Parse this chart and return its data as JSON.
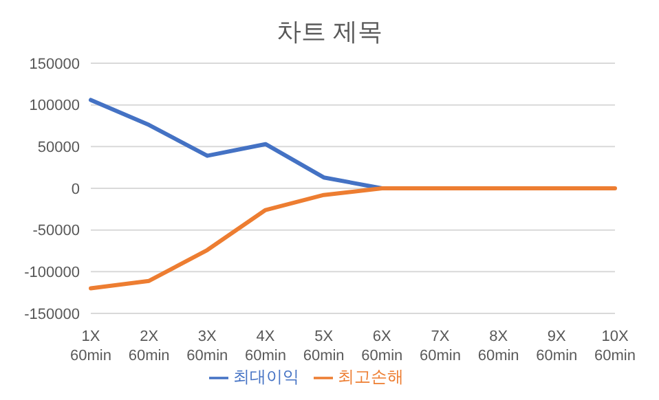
{
  "chart_data": {
    "type": "line",
    "title": "차트 제목",
    "categories": [
      "1X 60min",
      "2X 60min",
      "3X 60min",
      "4X 60min",
      "5X 60min",
      "6X 60min",
      "7X 60min",
      "8X 60min",
      "9X 60min",
      "10X 60min"
    ],
    "series": [
      {
        "name": "최대이익",
        "color": "#4472c4",
        "values": [
          106000,
          76000,
          39000,
          53000,
          13000,
          0,
          0,
          null,
          null,
          null
        ]
      },
      {
        "name": "최고손해",
        "color": "#ed7d31",
        "values": [
          -120000,
          -111000,
          -74000,
          -26000,
          -8000,
          0,
          0,
          0,
          0,
          0
        ]
      }
    ],
    "ylim": [
      -150000,
      150000
    ],
    "yticks": [
      -150000,
      -100000,
      -50000,
      0,
      50000,
      100000,
      150000
    ],
    "grid": "y",
    "legend": "bottom",
    "marker": "none",
    "line_style": "solid"
  }
}
